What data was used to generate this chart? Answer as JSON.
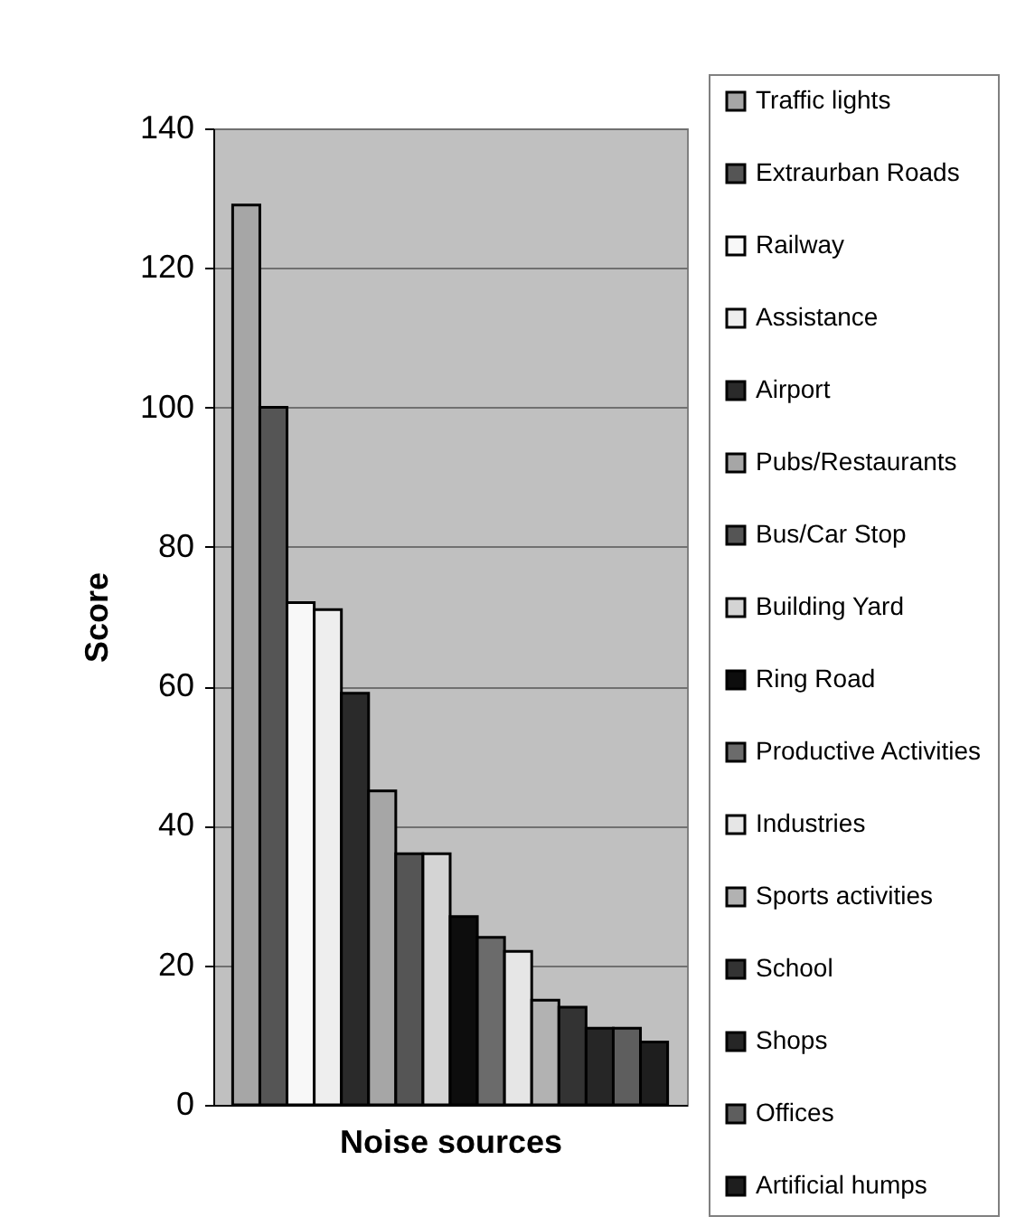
{
  "chart_data": {
    "type": "bar",
    "xlabel": "Noise sources",
    "ylabel": "Score",
    "categories": [
      null
    ],
    "series": [
      {
        "name": "Traffic lights",
        "color": "#a6a6a6",
        "values": [
          129
        ]
      },
      {
        "name": "Extraurban Roads",
        "color": "#555555",
        "values": [
          100
        ]
      },
      {
        "name": "Railway",
        "color": "#f8f8f8",
        "values": [
          72
        ]
      },
      {
        "name": "Assistance",
        "color": "#eeeeee",
        "values": [
          71
        ]
      },
      {
        "name": "Airport",
        "color": "#2a2a2a",
        "values": [
          59
        ]
      },
      {
        "name": "Pubs/Restaurants",
        "color": "#a6a6a6",
        "values": [
          45
        ]
      },
      {
        "name": "Bus/Car Stop",
        "color": "#555555",
        "values": [
          36
        ]
      },
      {
        "name": "Building Yard",
        "color": "#d4d4d4",
        "values": [
          36
        ]
      },
      {
        "name": "Ring Road",
        "color": "#0d0d0d",
        "values": [
          27
        ]
      },
      {
        "name": "Productive Activities",
        "color": "#6b6b6b",
        "values": [
          24
        ]
      },
      {
        "name": "Industries",
        "color": "#e6e6e6",
        "values": [
          22
        ]
      },
      {
        "name": "Sports activities",
        "color": "#b2b2b2",
        "values": [
          15
        ]
      },
      {
        "name": "School",
        "color": "#333333",
        "values": [
          14
        ]
      },
      {
        "name": "Shops",
        "color": "#262626",
        "values": [
          11
        ]
      },
      {
        "name": "Offices",
        "color": "#5e5e5e",
        "values": [
          11
        ]
      },
      {
        "name": "Artificial humps",
        "color": "#1e1e1e",
        "values": [
          9
        ]
      }
    ],
    "ylim": [
      0,
      140
    ],
    "yticks": [
      0,
      20,
      40,
      60,
      80,
      100,
      120,
      140
    ],
    "grid": "y",
    "legend": "right",
    "tick_labels": "y"
  }
}
